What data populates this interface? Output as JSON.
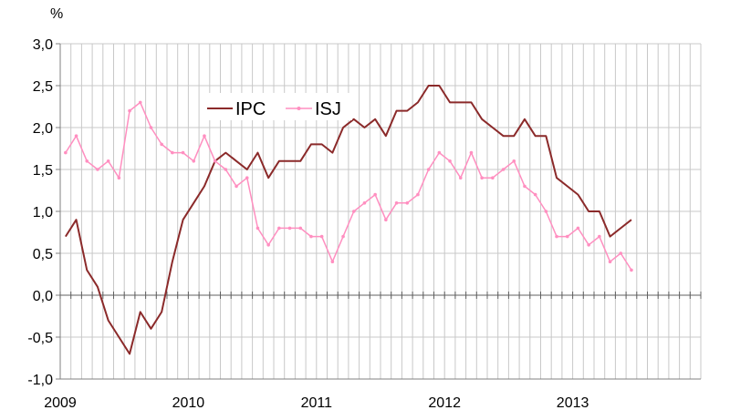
{
  "chart_data": {
    "type": "line",
    "unit_label": "%",
    "ylim": [
      -1.0,
      3.0
    ],
    "y_ticks": [
      "3,0",
      "2,5",
      "2,0",
      "1,5",
      "1,0",
      "0,5",
      "0,0",
      "-0,5",
      "-1,0"
    ],
    "y_tick_values": [
      3.0,
      2.5,
      2.0,
      1.5,
      1.0,
      0.5,
      0.0,
      -0.5,
      -1.0
    ],
    "x_start": "2009-01",
    "x_end": "2013-12",
    "x_year_labels": [
      "2009",
      "2010",
      "2011",
      "2012",
      "2013"
    ],
    "grid": true,
    "legend_position": "top-center",
    "series": [
      {
        "name": "IPC",
        "color": "#8b2a2a",
        "marker": false,
        "x": [
          "2009-01",
          "2009-02",
          "2009-03",
          "2009-04",
          "2009-05",
          "2009-06",
          "2009-07",
          "2009-08",
          "2009-09",
          "2009-10",
          "2009-11",
          "2009-12",
          "2010-01",
          "2010-02",
          "2010-03",
          "2010-04",
          "2010-05",
          "2010-06",
          "2010-07",
          "2010-08",
          "2010-09",
          "2010-10",
          "2010-11",
          "2010-12",
          "2011-01",
          "2011-02",
          "2011-03",
          "2011-04",
          "2011-05",
          "2011-06",
          "2011-07",
          "2011-08",
          "2011-09",
          "2011-10",
          "2011-11",
          "2011-12",
          "2012-01",
          "2012-02",
          "2012-03",
          "2012-04",
          "2012-05",
          "2012-06",
          "2012-07",
          "2012-08",
          "2012-09",
          "2012-10",
          "2012-11",
          "2012-12",
          "2013-01",
          "2013-02",
          "2013-03",
          "2013-04",
          "2013-05",
          "2013-06"
        ],
        "values": [
          0.7,
          0.9,
          0.3,
          0.1,
          -0.3,
          -0.5,
          -0.7,
          -0.2,
          -0.4,
          -0.2,
          0.4,
          0.9,
          1.1,
          1.3,
          1.6,
          1.7,
          1.6,
          1.5,
          1.7,
          1.4,
          1.6,
          1.6,
          1.6,
          1.8,
          1.8,
          1.7,
          2.0,
          2.1,
          2.0,
          2.1,
          1.9,
          2.2,
          2.2,
          2.3,
          2.5,
          2.5,
          2.3,
          2.3,
          2.3,
          2.1,
          2.0,
          1.9,
          1.9,
          2.1,
          1.9,
          1.9,
          1.4,
          1.3,
          1.2,
          1.0,
          1.0,
          0.7,
          0.8,
          0.9
        ]
      },
      {
        "name": "ISJ",
        "color": "#ff8fc0",
        "marker": true,
        "x": [
          "2009-01",
          "2009-02",
          "2009-03",
          "2009-04",
          "2009-05",
          "2009-06",
          "2009-07",
          "2009-08",
          "2009-09",
          "2009-10",
          "2009-11",
          "2009-12",
          "2010-01",
          "2010-02",
          "2010-03",
          "2010-04",
          "2010-05",
          "2010-06",
          "2010-07",
          "2010-08",
          "2010-09",
          "2010-10",
          "2010-11",
          "2010-12",
          "2011-01",
          "2011-02",
          "2011-03",
          "2011-04",
          "2011-05",
          "2011-06",
          "2011-07",
          "2011-08",
          "2011-09",
          "2011-10",
          "2011-11",
          "2011-12",
          "2012-01",
          "2012-02",
          "2012-03",
          "2012-04",
          "2012-05",
          "2012-06",
          "2012-07",
          "2012-08",
          "2012-09",
          "2012-10",
          "2012-11",
          "2012-12",
          "2013-01",
          "2013-02",
          "2013-03",
          "2013-04",
          "2013-05",
          "2013-06"
        ],
        "values": [
          1.7,
          1.9,
          1.6,
          1.5,
          1.6,
          1.4,
          2.2,
          2.3,
          2.0,
          1.8,
          1.7,
          1.7,
          1.6,
          1.9,
          1.6,
          1.5,
          1.3,
          1.4,
          0.8,
          0.6,
          0.8,
          0.8,
          0.8,
          0.7,
          0.7,
          0.4,
          0.7,
          1.0,
          1.1,
          1.2,
          0.9,
          1.1,
          1.1,
          1.2,
          1.5,
          1.7,
          1.6,
          1.4,
          1.7,
          1.4,
          1.4,
          1.5,
          1.6,
          1.3,
          1.2,
          1.0,
          0.7,
          0.7,
          0.8,
          0.6,
          0.7,
          0.4,
          0.5,
          0.3
        ]
      }
    ]
  }
}
